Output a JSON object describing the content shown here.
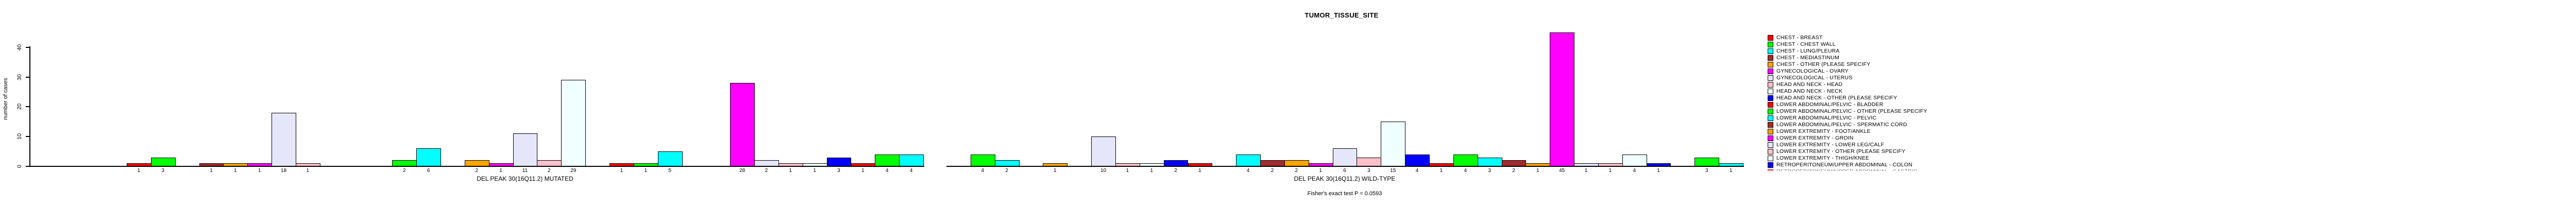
{
  "chart_data": {
    "type": "bar",
    "title": "TUMOR_TISSUE_SITE",
    "ylabel": "number of cases",
    "footer": "Fisher's exact test P = 0.0593",
    "yticks": [
      0,
      10,
      20,
      30,
      40
    ],
    "ylim": [
      0,
      45
    ],
    "grid": false,
    "legend_position": "right",
    "color_cycle": [
      "#FF0000",
      "#00FF00",
      "#00FFFF",
      "#A52A2A",
      "#FFA500",
      "#FF00FF",
      "#E6E6FA",
      "#FFC0CB",
      "#F0FFFF",
      "#0000FF"
    ],
    "slots_per_group": 33,
    "groups": [
      {
        "label": "DEL PEAK 30(16Q11.2) MUTATED",
        "bars": [
          {
            "slot": 1,
            "value": 1
          },
          {
            "slot": 2,
            "value": 3
          },
          {
            "slot": 4,
            "value": 1
          },
          {
            "slot": 5,
            "value": 1
          },
          {
            "slot": 6,
            "value": 1
          },
          {
            "slot": 7,
            "value": 18
          },
          {
            "slot": 8,
            "value": 1
          },
          {
            "slot": 12,
            "value": 2
          },
          {
            "slot": 13,
            "value": 6
          },
          {
            "slot": 15,
            "value": 2
          },
          {
            "slot": 16,
            "value": 1
          },
          {
            "slot": 17,
            "value": 11
          },
          {
            "slot": 18,
            "value": 2
          },
          {
            "slot": 19,
            "value": 29
          },
          {
            "slot": 21,
            "value": 1
          },
          {
            "slot": 22,
            "value": 1
          },
          {
            "slot": 23,
            "value": 5
          },
          {
            "slot": 26,
            "value": 28
          },
          {
            "slot": 27,
            "value": 2
          },
          {
            "slot": 28,
            "value": 1
          },
          {
            "slot": 29,
            "value": 1
          },
          {
            "slot": 30,
            "value": 3
          },
          {
            "slot": 31,
            "value": 1
          },
          {
            "slot": 32,
            "value": 4
          },
          {
            "slot": 33,
            "value": 4
          }
        ]
      },
      {
        "label": "DEL PEAK 30(16Q11.2) WILD-TYPE",
        "bars": [
          {
            "slot": 2,
            "value": 4
          },
          {
            "slot": 3,
            "value": 2
          },
          {
            "slot": 5,
            "value": 1
          },
          {
            "slot": 7,
            "value": 10
          },
          {
            "slot": 8,
            "value": 1
          },
          {
            "slot": 9,
            "value": 1
          },
          {
            "slot": 10,
            "value": 2
          },
          {
            "slot": 11,
            "value": 1
          },
          {
            "slot": 13,
            "value": 4
          },
          {
            "slot": 14,
            "value": 2
          },
          {
            "slot": 15,
            "value": 2
          },
          {
            "slot": 16,
            "value": 1
          },
          {
            "slot": 17,
            "value": 6
          },
          {
            "slot": 18,
            "value": 3
          },
          {
            "slot": 19,
            "value": 15
          },
          {
            "slot": 20,
            "value": 4
          },
          {
            "slot": 21,
            "value": 1
          },
          {
            "slot": 22,
            "value": 4
          },
          {
            "slot": 23,
            "value": 3
          },
          {
            "slot": 24,
            "value": 2
          },
          {
            "slot": 25,
            "value": 1
          },
          {
            "slot": 26,
            "value": 45
          },
          {
            "slot": 27,
            "value": 1
          },
          {
            "slot": 28,
            "value": 1
          },
          {
            "slot": 29,
            "value": 4
          },
          {
            "slot": 30,
            "value": 1
          },
          {
            "slot": 32,
            "value": 3
          },
          {
            "slot": 33,
            "value": 1
          }
        ]
      }
    ],
    "legend_entries": [
      {
        "label": "CHEST - BREAST",
        "color": "#FF0000"
      },
      {
        "label": "CHEST - CHEST WALL",
        "color": "#00FF00"
      },
      {
        "label": "CHEST - LUNG/PLEURA",
        "color": "#00FFFF"
      },
      {
        "label": "CHEST - MEDIASTINUM",
        "color": "#A52A2A"
      },
      {
        "label": "CHEST - OTHER (PLEASE SPECIFY",
        "color": "#FFA500"
      },
      {
        "label": "GYNECOLOGICAL - OVARY",
        "color": "#FF00FF"
      },
      {
        "label": "GYNECOLOGICAL - UTERUS",
        "color": "#E6E6FA"
      },
      {
        "label": "HEAD AND NECK - HEAD",
        "color": "#FFC0CB"
      },
      {
        "label": "HEAD AND NECK - NECK",
        "color": "#F0FFFF"
      },
      {
        "label": "HEAD AND NECK - OTHER (PLEASE SPECIFY",
        "color": "#0000FF"
      },
      {
        "label": "LOWER ABDOMINAL/PELVIC - BLADDER",
        "color": "#FF0000"
      },
      {
        "label": "LOWER ABDOMINAL/PELVIC - OTHER (PLEASE SPECIFY",
        "color": "#00FF00"
      },
      {
        "label": "LOWER ABDOMINAL/PELVIC - PELVIC",
        "color": "#00FFFF"
      },
      {
        "label": "LOWER ABDOMINAL/PELVIC - SPERMATIC CORD",
        "color": "#A52A2A"
      },
      {
        "label": "LOWER EXTREMITY - FOOT/ANKLE",
        "color": "#FFA500"
      },
      {
        "label": "LOWER EXTREMITY - GROIN",
        "color": "#FF00FF"
      },
      {
        "label": "LOWER EXTREMITY - LOWER LEG/CALF",
        "color": "#E6E6FA"
      },
      {
        "label": "LOWER EXTREMITY - OTHER (PLEASE SPECIFY",
        "color": "#FFC0CB"
      },
      {
        "label": "LOWER EXTREMITY - THIGH/KNEE",
        "color": "#F0FFFF"
      },
      {
        "label": "RETROPERITONEUM/UPPER ABDOMINAL - COLON",
        "color": "#0000FF"
      }
    ],
    "legend_clipped_entry": {
      "label": "RETROPERITONEUM/UPPER ABDOMINAL - GASTRIC",
      "color": "#FF0000"
    }
  }
}
